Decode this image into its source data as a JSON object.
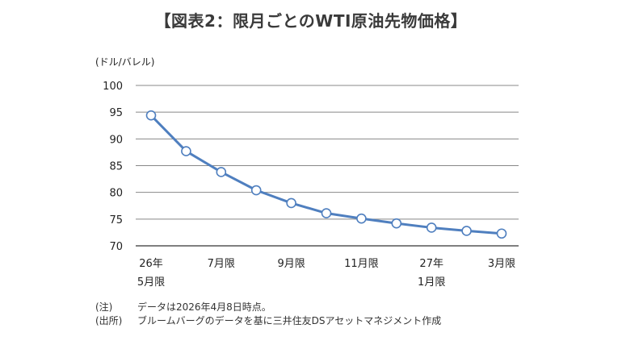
{
  "chart_data": {
    "type": "line",
    "title": "【図表2：限月ごとのWTI原油先物価格】",
    "ylabel": "(ドル/バレル)",
    "ylim": [
      70,
      100
    ],
    "yticks": [
      "100",
      "95",
      "90",
      "85",
      "80",
      "75",
      "70"
    ],
    "grid": true,
    "x_labels": [
      {
        "index": 0,
        "lines": [
          "26年",
          "5月限"
        ]
      },
      {
        "index": 2,
        "lines": [
          "7月限"
        ]
      },
      {
        "index": 4,
        "lines": [
          "9月限"
        ]
      },
      {
        "index": 6,
        "lines": [
          "11月限"
        ]
      },
      {
        "index": 8,
        "lines": [
          "27年",
          "1月限"
        ]
      },
      {
        "index": 10,
        "lines": [
          "3月限"
        ]
      }
    ],
    "series": [
      {
        "color": "#4f7fbf",
        "values": [
          94.4,
          87.7,
          83.8,
          80.4,
          78.0,
          76.1,
          75.1,
          74.2,
          73.4,
          72.8,
          72.3
        ]
      }
    ]
  },
  "notes": [
    {
      "label": "(注)",
      "text": "データは2026年4月8日時点。"
    },
    {
      "label": "(出所)",
      "text": "ブルームバーグのデータを基に三井住友DSアセットマネジメント作成"
    }
  ]
}
